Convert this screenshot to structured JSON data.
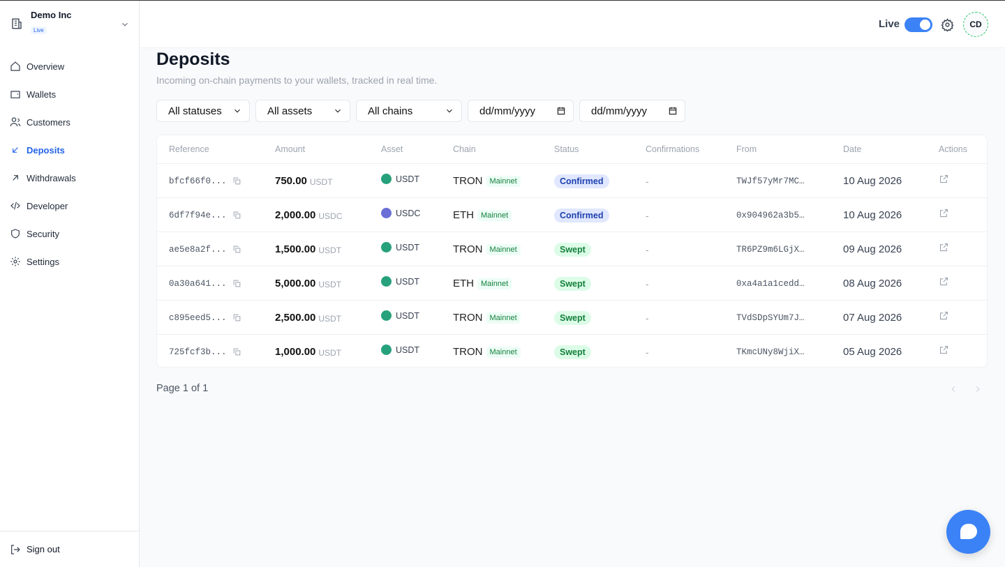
{
  "sidebar": {
    "org": "Demo Inc",
    "org_badge": "Live",
    "nav": [
      "Overview",
      "Wallets",
      "Customers",
      "Deposits",
      "Withdrawals",
      "Developer",
      "Security",
      "Settings"
    ],
    "sign_out": "Sign out"
  },
  "topbar": {
    "live_label": "Live",
    "avatar": "CD"
  },
  "page": {
    "title": "Deposits",
    "subtitle": "Incoming on-chain payments to your wallets, tracked in real time."
  },
  "filters": [
    "All statuses",
    "All assets",
    "All chains",
    "dd/mm/yyyy",
    "dd/mm/yyyy"
  ],
  "table": {
    "headers": [
      "Reference",
      "Amount",
      "Asset",
      "Chain",
      "Status",
      "Confirmations",
      "From",
      "Date",
      "Actions"
    ],
    "rows": [
      {
        "reference": "bfcf66f0...",
        "amount": "750.00",
        "unit": "USDT",
        "asset": "USDT",
        "asset_color": "#26a17b",
        "chain": "TRON",
        "network": "Mainnet",
        "status": "Confirmed",
        "status_color": "blue",
        "confirmations": "-",
        "from": "TWJf57yMr7MC…",
        "date": "10 Aug 2026"
      },
      {
        "reference": "6df7f94e...",
        "amount": "2,000.00",
        "unit": "USDC",
        "asset": "USDC",
        "asset_color": "#6a6fd6",
        "chain": "ETH",
        "network": "Mainnet",
        "status": "Confirmed",
        "status_color": "blue",
        "confirmations": "-",
        "from": "0x904962a3b5…",
        "date": "10 Aug 2026"
      },
      {
        "reference": "ae5e8a2f...",
        "amount": "1,500.00",
        "unit": "USDT",
        "asset": "USDT",
        "asset_color": "#26a17b",
        "chain": "TRON",
        "network": "Mainnet",
        "status": "Swept",
        "status_color": "green",
        "confirmations": "-",
        "from": "TR6PZ9m6LGjX…",
        "date": "09 Aug 2026"
      },
      {
        "reference": "0a30a641...",
        "amount": "5,000.00",
        "unit": "USDT",
        "asset": "USDT",
        "asset_color": "#26a17b",
        "chain": "ETH",
        "network": "Mainnet",
        "status": "Swept",
        "status_color": "green",
        "confirmations": "-",
        "from": "0xa4a1a1cedd…",
        "date": "08 Aug 2026"
      },
      {
        "reference": "c895eed5...",
        "amount": "2,500.00",
        "unit": "USDT",
        "asset": "USDT",
        "asset_color": "#26a17b",
        "chain": "TRON",
        "network": "Mainnet",
        "status": "Swept",
        "status_color": "green",
        "confirmations": "-",
        "from": "TVdSDpSYUm7J…",
        "date": "07 Aug 2026"
      },
      {
        "reference": "725fcf3b...",
        "amount": "1,000.00",
        "unit": "USDT",
        "asset": "USDT",
        "asset_color": "#26a17b",
        "chain": "TRON",
        "network": "Mainnet",
        "status": "Swept",
        "status_color": "green",
        "confirmations": "-",
        "from": "TKmcUNy8WjiX…",
        "date": "05 Aug 2026"
      }
    ]
  },
  "pagination": "Page 1 of 1"
}
